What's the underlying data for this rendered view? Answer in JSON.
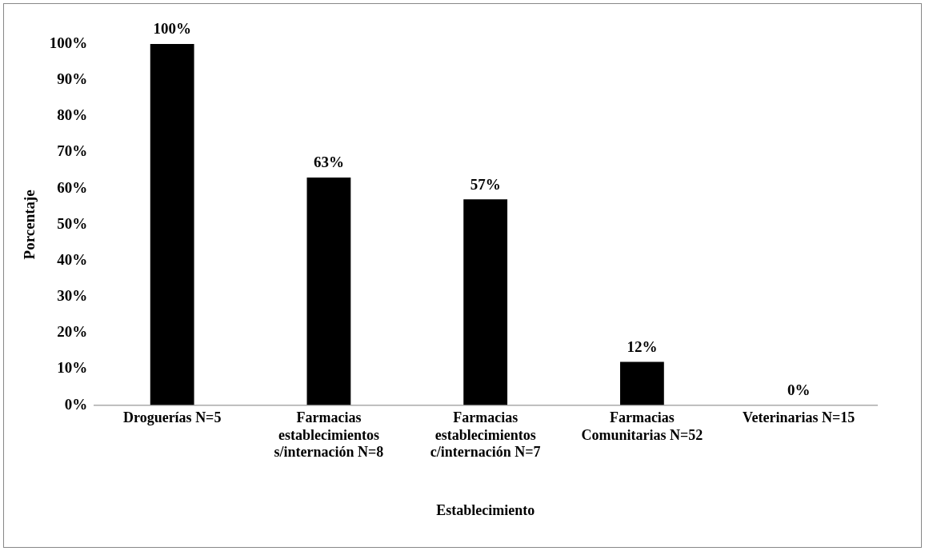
{
  "chart_data": {
    "type": "bar",
    "xlabel": "Establecimiento",
    "ylabel": "Porcentaje",
    "categories": [
      "Droguerías N=5",
      "Farmacias establecimientos s/internación N=8",
      "Farmacias establecimientos c/internación N=7",
      "Farmacias Comunitarias N=52",
      "Veterinarias N=15"
    ],
    "values": [
      100,
      63,
      57,
      12,
      0
    ],
    "color": "#000000",
    "value_labels": [
      "100%",
      "63%",
      "57%",
      "12%",
      "0%"
    ],
    "ylim": [
      0,
      100
    ],
    "yticks": [
      {
        "value": 0,
        "label": "0%"
      },
      {
        "value": 10,
        "label": "10%"
      },
      {
        "value": 20,
        "label": "20%"
      },
      {
        "value": 30,
        "label": "30%"
      },
      {
        "value": 40,
        "label": "40%"
      },
      {
        "value": 50,
        "label": "50%"
      },
      {
        "value": 60,
        "label": "60%"
      },
      {
        "value": 70,
        "label": "70%"
      },
      {
        "value": 80,
        "label": "80%"
      },
      {
        "value": 90,
        "label": "90%"
      },
      {
        "value": 100,
        "label": "100%"
      }
    ],
    "grid": false,
    "legend": false
  }
}
